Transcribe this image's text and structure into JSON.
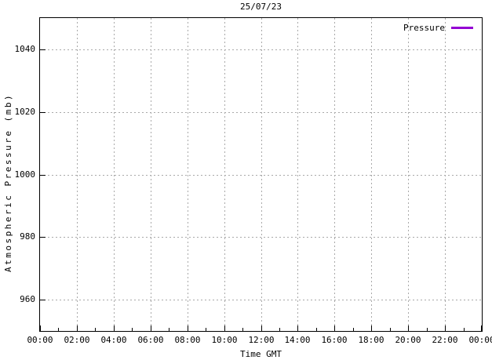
{
  "chart_data": {
    "type": "line",
    "title": "25/07/23",
    "xlabel": "Time GMT",
    "ylabel": "Atmospheric Pressure (mb)",
    "x_tick_labels": [
      "00:00",
      "02:00",
      "04:00",
      "06:00",
      "08:00",
      "10:00",
      "12:00",
      "14:00",
      "16:00",
      "18:00",
      "20:00",
      "22:00",
      "00:00"
    ],
    "x_minor_ticks_between_majors": 1,
    "y_ticks": [
      960,
      980,
      1000,
      1020,
      1040
    ],
    "ylim": [
      950,
      1050
    ],
    "grid": true,
    "grid_color": "#a9a9a9",
    "axis_color": "#000000",
    "background_color": "#ffffff",
    "legend_position": "top-right-inside",
    "series": [
      {
        "name": "Pressure",
        "color": "#9400D3",
        "x": [],
        "values": []
      }
    ]
  }
}
